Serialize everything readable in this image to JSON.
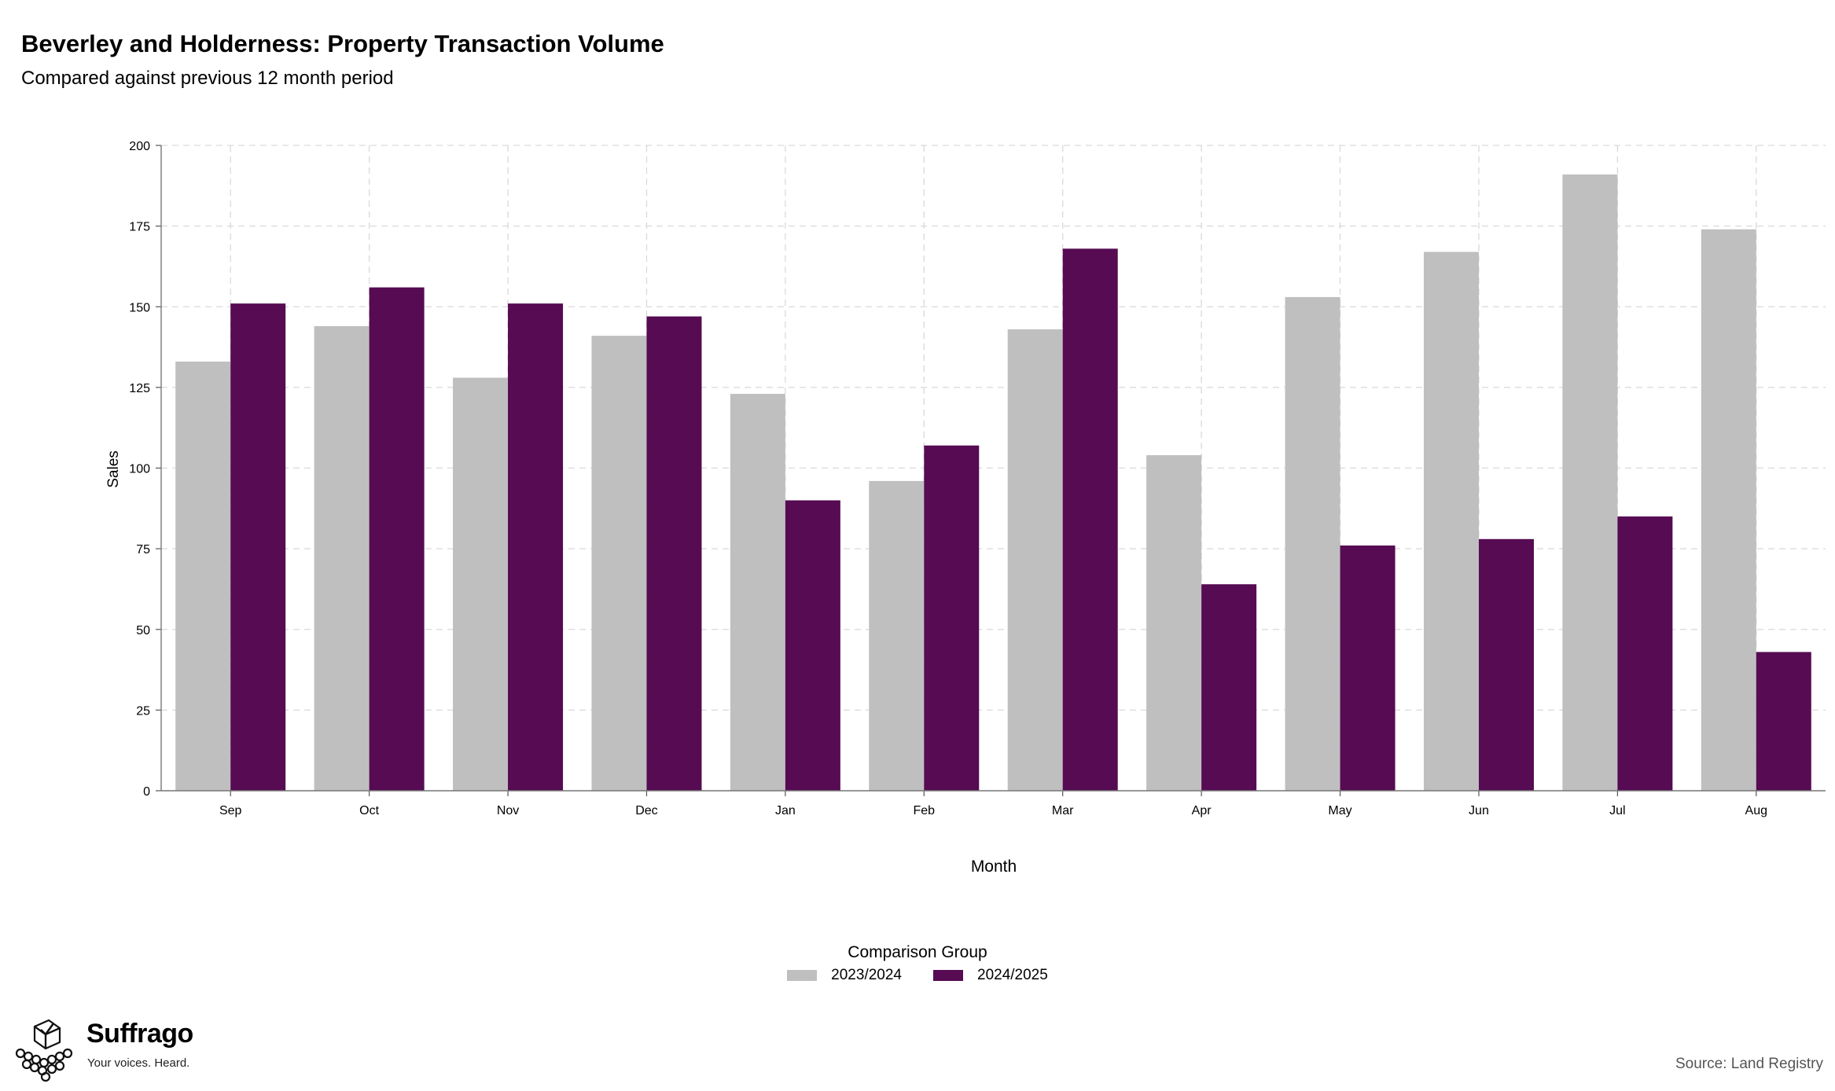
{
  "header": {
    "title": "Beverley and Holderness: Property Transaction Volume",
    "subtitle": "Compared against previous 12 month period"
  },
  "legend": {
    "title": "Comparison Group",
    "items": [
      {
        "label": "2023/2024",
        "color": "#bfbfbf"
      },
      {
        "label": "2024/2025",
        "color": "#560b53"
      }
    ]
  },
  "branding": {
    "name": "Suffrago",
    "tagline": "Your voices. Heard.",
    "logo_icon": "ballot-box-icon"
  },
  "footer": {
    "source": "Source: Land Registry"
  },
  "chart_data": {
    "type": "bar",
    "xlabel": "Month",
    "ylabel": "Sales",
    "ylim": [
      0,
      200
    ],
    "yticks": [
      0,
      25,
      50,
      75,
      100,
      125,
      150,
      175,
      200
    ],
    "grid": true,
    "legend_position": "bottom",
    "categories": [
      "Sep",
      "Oct",
      "Nov",
      "Dec",
      "Jan",
      "Feb",
      "Mar",
      "Apr",
      "May",
      "Jun",
      "Jul",
      "Aug"
    ],
    "series": [
      {
        "name": "2023/2024",
        "color": "#bfbfbf",
        "values": [
          133,
          144,
          128,
          141,
          123,
          96,
          143,
          104,
          153,
          167,
          191,
          174
        ]
      },
      {
        "name": "2024/2025",
        "color": "#560b53",
        "values": [
          151,
          156,
          151,
          147,
          90,
          107,
          168,
          64,
          76,
          78,
          85,
          43
        ]
      }
    ]
  }
}
